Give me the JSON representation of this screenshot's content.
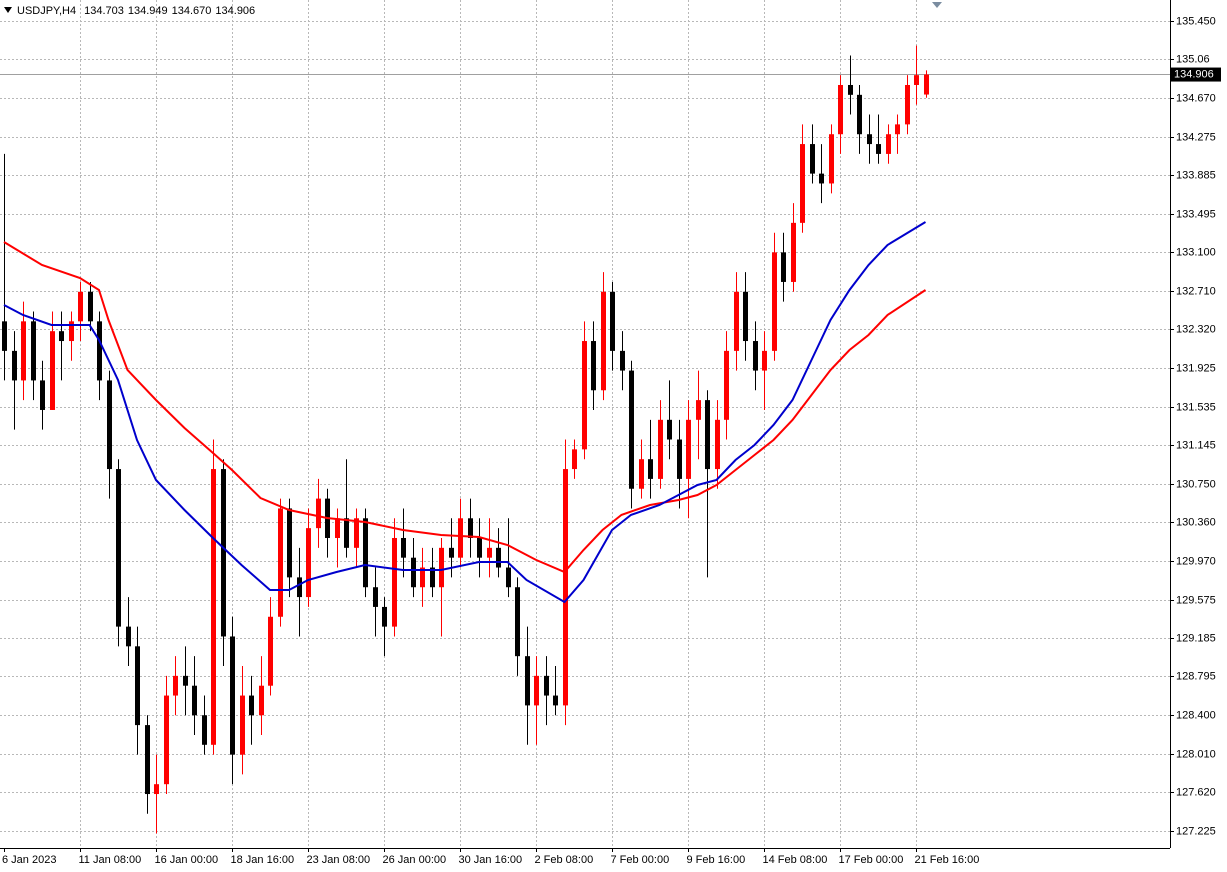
{
  "chart_data": {
    "type": "candlestick",
    "title": "USDJPY,H4",
    "header_values": [
      "134.703",
      "134.949",
      "134.670",
      "134.906"
    ],
    "categories": [
      "6 Jan 2023",
      null,
      null,
      null,
      null,
      null,
      null,
      null,
      "11 Jan 08:00",
      null,
      null,
      null,
      null,
      null,
      null,
      null,
      "16 Jan 00:00",
      null,
      null,
      null,
      null,
      null,
      null,
      null,
      "18 Jan 16:00",
      null,
      null,
      null,
      null,
      null,
      null,
      null,
      "23 Jan 08:00",
      null,
      null,
      null,
      null,
      null,
      null,
      null,
      "26 Jan 00:00",
      null,
      null,
      null,
      null,
      null,
      null,
      null,
      "30 Jan 16:00",
      null,
      null,
      null,
      null,
      null,
      null,
      null,
      "2 Feb 08:00",
      null,
      null,
      null,
      null,
      null,
      null,
      null,
      "7 Feb 00:00",
      null,
      null,
      null,
      null,
      null,
      null,
      null,
      "9 Feb 16:00",
      null,
      null,
      null,
      null,
      null,
      null,
      null,
      "14 Feb 08:00",
      null,
      null,
      null,
      null,
      null,
      null,
      null,
      "17 Feb 00:00",
      null,
      null,
      null,
      null,
      null,
      null,
      null,
      "21 Feb 16:00",
      null
    ],
    "candles": [
      [
        132.4,
        134.1,
        131.8,
        132.1
      ],
      [
        132.1,
        132.3,
        131.3,
        131.8
      ],
      [
        131.8,
        132.6,
        131.6,
        132.4
      ],
      [
        132.4,
        132.5,
        131.6,
        131.8
      ],
      [
        131.8,
        132.0,
        131.3,
        131.5
      ],
      [
        131.5,
        132.5,
        131.5,
        132.3
      ],
      [
        132.3,
        132.5,
        131.8,
        132.2
      ],
      [
        132.2,
        132.5,
        132.0,
        132.4
      ],
      [
        132.4,
        132.8,
        132.2,
        132.7
      ],
      [
        132.7,
        132.8,
        132.3,
        132.4
      ],
      [
        132.4,
        132.5,
        131.6,
        131.8
      ],
      [
        131.8,
        131.9,
        130.6,
        130.9
      ],
      [
        130.9,
        131.0,
        129.1,
        129.3
      ],
      [
        129.3,
        129.6,
        128.9,
        129.1
      ],
      [
        129.1,
        129.3,
        128.0,
        128.3
      ],
      [
        128.3,
        128.4,
        127.4,
        127.6
      ],
      [
        127.6,
        128.0,
        127.2,
        127.7
      ],
      [
        127.7,
        128.8,
        127.6,
        128.6
      ],
      [
        128.6,
        129.0,
        128.4,
        128.8
      ],
      [
        128.8,
        129.1,
        128.4,
        128.7
      ],
      [
        128.7,
        129.0,
        128.2,
        128.4
      ],
      [
        128.4,
        128.6,
        128.0,
        128.1
      ],
      [
        128.1,
        131.2,
        128.0,
        130.9
      ],
      [
        130.9,
        131.0,
        128.9,
        129.2
      ],
      [
        129.2,
        129.4,
        127.7,
        128.0
      ],
      [
        128.0,
        128.9,
        127.8,
        128.6
      ],
      [
        128.6,
        128.8,
        128.1,
        128.4
      ],
      [
        128.4,
        129.0,
        128.2,
        128.7
      ],
      [
        128.7,
        129.6,
        128.6,
        129.4
      ],
      [
        129.4,
        130.6,
        129.3,
        130.5
      ],
      [
        130.5,
        130.6,
        129.6,
        129.8
      ],
      [
        129.8,
        130.1,
        129.2,
        129.6
      ],
      [
        129.6,
        130.5,
        129.5,
        130.3
      ],
      [
        130.3,
        130.8,
        130.1,
        130.6
      ],
      [
        130.6,
        130.7,
        130.0,
        130.2
      ],
      [
        130.2,
        130.5,
        129.9,
        130.4
      ],
      [
        130.4,
        131.0,
        130.0,
        130.1
      ],
      [
        130.1,
        130.5,
        129.9,
        130.4
      ],
      [
        130.4,
        130.5,
        129.6,
        129.7
      ],
      [
        129.7,
        129.9,
        129.2,
        129.5
      ],
      [
        129.5,
        129.6,
        129.0,
        129.3
      ],
      [
        129.3,
        130.4,
        129.2,
        130.2
      ],
      [
        130.2,
        130.5,
        129.8,
        130.0
      ],
      [
        130.0,
        130.2,
        129.6,
        129.7
      ],
      [
        129.7,
        130.1,
        129.5,
        129.9
      ],
      [
        129.9,
        130.1,
        129.6,
        129.7
      ],
      [
        129.7,
        130.2,
        129.2,
        130.1
      ],
      [
        130.1,
        130.4,
        129.8,
        130.0
      ],
      [
        130.0,
        130.6,
        129.9,
        130.4
      ],
      [
        130.4,
        130.6,
        130.0,
        130.2
      ],
      [
        130.2,
        130.4,
        129.8,
        130.0
      ],
      [
        130.0,
        130.4,
        129.8,
        130.1
      ],
      [
        130.1,
        130.3,
        129.8,
        129.9
      ],
      [
        129.9,
        130.4,
        129.6,
        129.7
      ],
      [
        129.7,
        129.8,
        128.8,
        129.0
      ],
      [
        129.0,
        129.3,
        128.1,
        128.5
      ],
      [
        128.5,
        129.0,
        128.1,
        128.8
      ],
      [
        128.8,
        129.0,
        128.3,
        128.6
      ],
      [
        128.6,
        128.9,
        128.4,
        128.5
      ],
      [
        128.5,
        131.2,
        128.3,
        130.9
      ],
      [
        130.9,
        131.2,
        130.8,
        131.1
      ],
      [
        131.1,
        132.4,
        131.0,
        132.2
      ],
      [
        132.2,
        132.4,
        131.5,
        131.7
      ],
      [
        131.7,
        132.9,
        131.6,
        132.7
      ],
      [
        132.7,
        132.8,
        131.9,
        132.1
      ],
      [
        132.1,
        132.3,
        131.7,
        131.9
      ],
      [
        131.9,
        132.0,
        130.5,
        130.7
      ],
      [
        130.7,
        131.2,
        130.6,
        131.0
      ],
      [
        131.0,
        131.4,
        130.6,
        130.8
      ],
      [
        130.8,
        131.6,
        130.7,
        131.4
      ],
      [
        131.4,
        131.8,
        131.0,
        131.2
      ],
      [
        131.2,
        131.4,
        130.5,
        130.8
      ],
      [
        130.8,
        131.6,
        130.4,
        131.4
      ],
      [
        131.4,
        131.9,
        131.0,
        131.6
      ],
      [
        131.6,
        131.7,
        129.8,
        130.9
      ],
      [
        130.9,
        131.6,
        130.7,
        131.4
      ],
      [
        131.4,
        132.3,
        131.2,
        132.1
      ],
      [
        132.1,
        132.9,
        131.9,
        132.7
      ],
      [
        132.7,
        132.9,
        132.0,
        132.2
      ],
      [
        132.2,
        132.4,
        131.7,
        131.9
      ],
      [
        131.9,
        132.3,
        131.5,
        132.1
      ],
      [
        132.1,
        133.3,
        132.0,
        133.1
      ],
      [
        133.1,
        133.3,
        132.6,
        132.8
      ],
      [
        132.8,
        133.6,
        132.7,
        133.4
      ],
      [
        133.4,
        134.4,
        133.3,
        134.2
      ],
      [
        134.2,
        134.4,
        133.8,
        133.9
      ],
      [
        133.9,
        134.2,
        133.6,
        133.8
      ],
      [
        133.8,
        134.4,
        133.7,
        134.3
      ],
      [
        134.3,
        134.9,
        134.1,
        134.8
      ],
      [
        134.8,
        135.1,
        134.5,
        134.7
      ],
      [
        134.7,
        134.8,
        134.1,
        134.3
      ],
      [
        134.3,
        134.5,
        134.0,
        134.2
      ],
      [
        134.2,
        134.5,
        134.0,
        134.1
      ],
      [
        134.1,
        134.4,
        134.0,
        134.3
      ],
      [
        134.3,
        134.5,
        134.1,
        134.4
      ],
      [
        134.4,
        134.9,
        134.3,
        134.8
      ],
      [
        134.8,
        135.2,
        134.6,
        134.9
      ],
      [
        134.703,
        134.949,
        134.67,
        134.906
      ]
    ],
    "up_color": "#ff0000",
    "down_color": "#000000",
    "series": [
      {
        "color": "#ff0000",
        "x": [
          0,
          4,
          8,
          10,
          11,
          13,
          16,
          19,
          22,
          24,
          27,
          30,
          34,
          38,
          42,
          46,
          50,
          53,
          56,
          59,
          61,
          63,
          65,
          68,
          71,
          73,
          75,
          77,
          79,
          81,
          83,
          85,
          87,
          89,
          91,
          93,
          97
        ],
        "values": [
          133.206,
          132.972,
          132.84,
          132.718,
          132.414,
          131.906,
          131.601,
          131.317,
          131.063,
          130.89,
          130.606,
          130.484,
          130.403,
          130.362,
          130.281,
          130.23,
          130.21,
          130.129,
          129.977,
          129.855,
          130.078,
          130.281,
          130.434,
          130.535,
          130.586,
          130.637,
          130.738,
          130.89,
          131.043,
          131.195,
          131.398,
          131.652,
          131.906,
          132.109,
          132.261,
          132.464,
          132.718
        ]
      },
      {
        "color": "#0000cc",
        "x": [
          0,
          2,
          5,
          9,
          10,
          12,
          14,
          16,
          19,
          22,
          25,
          28,
          30,
          32,
          35,
          38,
          42,
          46,
          50,
          53,
          55,
          59,
          61,
          64,
          66,
          69,
          71,
          73,
          75,
          77,
          79,
          81,
          83,
          85,
          87,
          89,
          91,
          93,
          97
        ],
        "values": [
          132.566,
          132.464,
          132.363,
          132.363,
          132.21,
          131.804,
          131.195,
          130.789,
          130.484,
          130.2,
          129.926,
          129.672,
          129.672,
          129.773,
          129.855,
          129.926,
          129.875,
          129.875,
          129.956,
          129.956,
          129.773,
          129.55,
          129.773,
          130.281,
          130.434,
          130.535,
          130.637,
          130.738,
          130.789,
          130.992,
          131.144,
          131.347,
          131.601,
          132.007,
          132.414,
          132.718,
          132.972,
          133.175,
          133.409
        ]
      }
    ],
    "ylim": [
      127.052,
      135.663
    ],
    "yticks": [
      {
        "value": 135.45,
        "label": "135.450"
      },
      135.06,
      {
        "value": 134.67,
        "label": "134.670"
      },
      134.275,
      133.885,
      133.495,
      {
        "value": 133.1,
        "label": "133.100"
      },
      {
        "value": 132.71,
        "label": "132.710"
      },
      {
        "value": 132.32,
        "label": "132.320"
      },
      131.925,
      131.535,
      131.145,
      {
        "value": 130.75,
        "label": "130.750"
      },
      {
        "value": 130.36,
        "label": "130.360"
      },
      {
        "value": 129.97,
        "label": "129.970"
      },
      129.575,
      129.185,
      128.795,
      {
        "value": 128.4,
        "label": "128.400"
      },
      {
        "value": 128.01,
        "label": "128.010"
      },
      {
        "value": 127.62,
        "label": "127.620"
      },
      127.225
    ],
    "grid": true,
    "current_price": 134.906
  }
}
